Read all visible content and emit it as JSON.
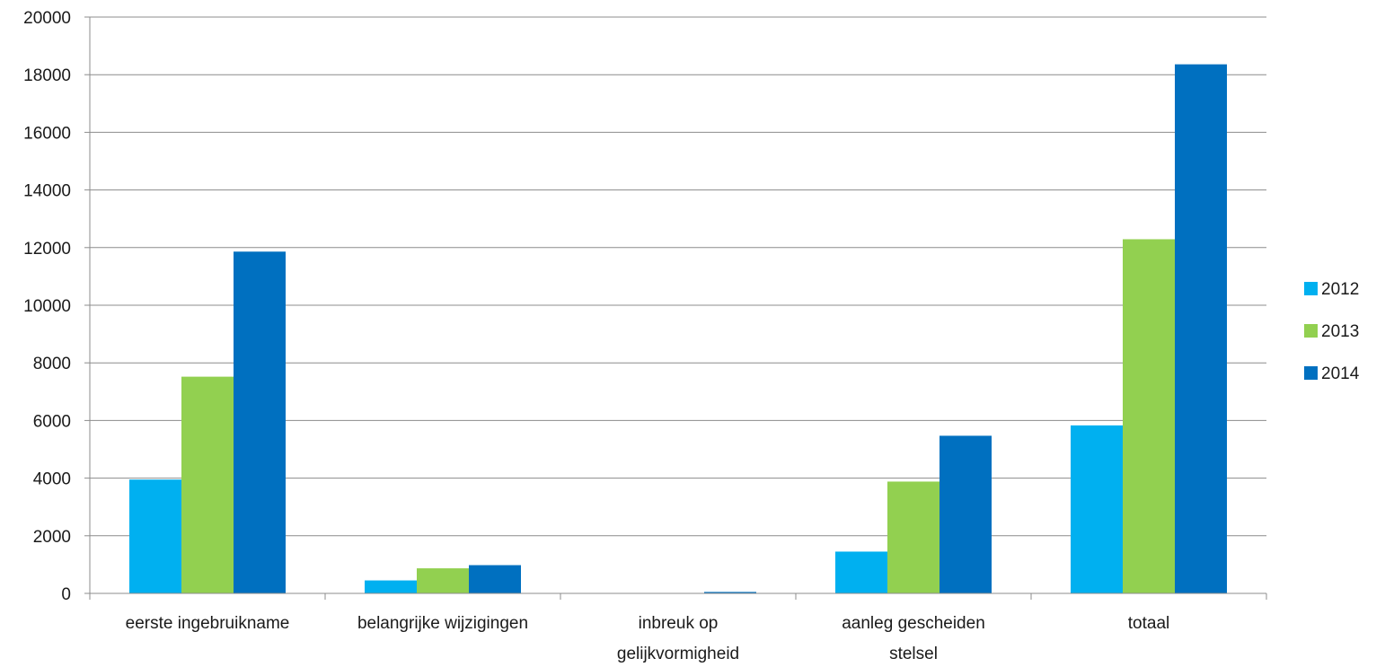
{
  "chart_data": {
    "type": "bar",
    "categories": [
      [
        "eerste ingebruikname"
      ],
      [
        "belangrijke wijzigingen"
      ],
      [
        "inbreuk op",
        "gelijkvormigheid"
      ],
      [
        "aanleg gescheiden",
        "stelsel"
      ],
      [
        "totaal"
      ]
    ],
    "series": [
      {
        "name": "2012",
        "color": "#00b0f0",
        "values": [
          3950,
          450,
          0,
          1450,
          5830
        ]
      },
      {
        "name": "2013",
        "color": "#92d050",
        "values": [
          7520,
          870,
          0,
          3880,
          12290
        ]
      },
      {
        "name": "2014",
        "color": "#0070c0",
        "values": [
          11860,
          980,
          50,
          5470,
          18360
        ]
      }
    ],
    "ylim": [
      0,
      20000
    ],
    "yticks": [
      0,
      2000,
      4000,
      6000,
      8000,
      10000,
      12000,
      14000,
      16000,
      18000,
      20000
    ],
    "grid": true,
    "legend_position": "right",
    "title": "",
    "xlabel": "",
    "ylabel": ""
  }
}
